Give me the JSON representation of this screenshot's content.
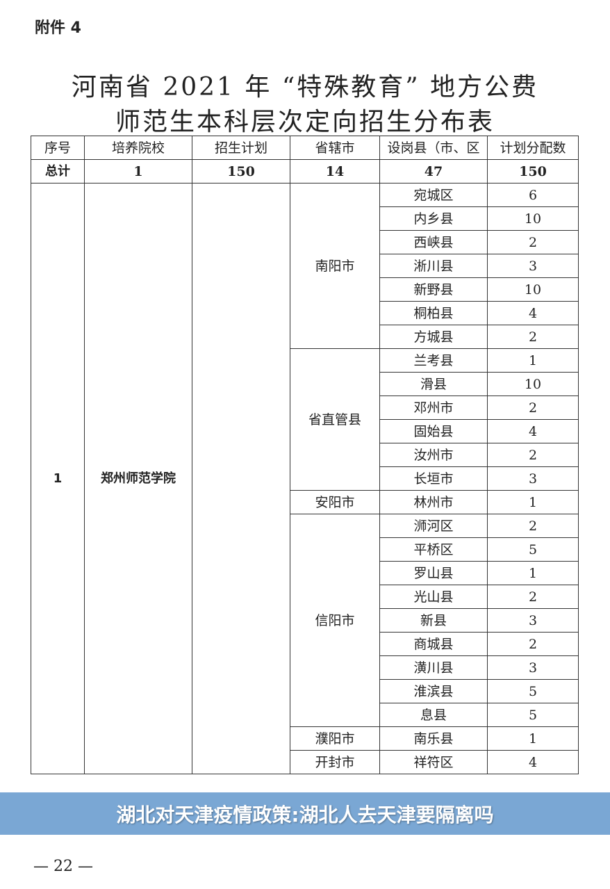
{
  "attachment_label": "附件 4",
  "title_line1": "河南省 2021 年 “特殊教育” 地方公费",
  "title_line2": "师范生本科层次定向招生分布表",
  "headers": [
    "序号",
    "培养院校",
    "招生计划",
    "省辖市",
    "设岗县（市、区",
    "计划分配数"
  ],
  "total_row": [
    "总计",
    "1",
    "150",
    "14",
    "47",
    "150"
  ],
  "entry": {
    "index": "1",
    "school": "郑州师范学院",
    "plan": ""
  },
  "groups": [
    {
      "city": "南阳市",
      "counties": [
        [
          "宛城区",
          "6"
        ],
        [
          "内乡县",
          "10"
        ],
        [
          "西峡县",
          "2"
        ],
        [
          "淅川县",
          "3"
        ],
        [
          "新野县",
          "10"
        ],
        [
          "桐柏县",
          "4"
        ],
        [
          "方城县",
          "2"
        ]
      ]
    },
    {
      "city": "省直管县",
      "counties": [
        [
          "兰考县",
          "1"
        ],
        [
          "滑县",
          "10"
        ],
        [
          "邓州市",
          "2"
        ],
        [
          "固始县",
          "4"
        ],
        [
          "汝州市",
          "2"
        ],
        [
          "长垣市",
          "3"
        ]
      ]
    },
    {
      "city": "安阳市",
      "counties": [
        [
          "林州市",
          "1"
        ]
      ]
    },
    {
      "city": "信阳市",
      "counties": [
        [
          "浉河区",
          "2"
        ],
        [
          "平桥区",
          "5"
        ],
        [
          "罗山县",
          "1"
        ],
        [
          "光山县",
          "2"
        ],
        [
          "新县",
          "3"
        ],
        [
          "商城县",
          "2"
        ],
        [
          "潢川县",
          "3"
        ],
        [
          "淮滨县",
          "5"
        ],
        [
          "息县",
          "5"
        ]
      ]
    },
    {
      "city": "濮阳市",
      "counties": [
        [
          "南乐县",
          "1"
        ]
      ]
    },
    {
      "city": "开封市",
      "counties": [
        [
          "祥符区",
          "4"
        ]
      ]
    }
  ],
  "banner_text": "湖北对天津疫情政策:湖北人去天津要隔离吗",
  "page_number": "— 22 —"
}
